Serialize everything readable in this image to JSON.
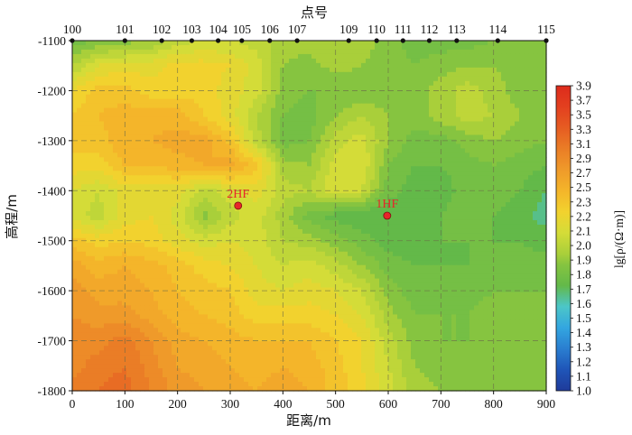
{
  "chart_data": {
    "type": "heatmap",
    "top_axis_title": "点号",
    "station_labels": [
      "100",
      "101",
      "102",
      "103",
      "104",
      "105",
      "106",
      "107",
      "109",
      "110",
      "111",
      "112",
      "113",
      "114",
      "115"
    ],
    "station_x": [
      0,
      100,
      170,
      227,
      277,
      322,
      375,
      427,
      525,
      578,
      628,
      678,
      730,
      808,
      900
    ],
    "xlabel": "距离/m",
    "ylabel": "高程/m",
    "xlim": [
      0,
      900
    ],
    "ylim": [
      -1800,
      -1100
    ],
    "x_ticks": [
      "0",
      "100",
      "200",
      "300",
      "400",
      "500",
      "600",
      "700",
      "800",
      "900"
    ],
    "y_ticks": [
      "-1100",
      "-1200",
      "-1300",
      "-1400",
      "-1500",
      "-1600",
      "-1700",
      "-1800"
    ],
    "grid": true,
    "colorbar": {
      "label": "lg[ρ/(Ω·m)]",
      "range": [
        1.0,
        3.9
      ],
      "ticks": [
        "1.0",
        "1.1",
        "1.2",
        "1.3",
        "1.4",
        "1.5",
        "1.6",
        "1.7",
        "1.8",
        "1.9",
        "2.0",
        "2.1",
        "2.2",
        "2.3",
        "2.5",
        "2.7",
        "2.9",
        "3.1",
        "3.3",
        "3.5",
        "3.7",
        "3.9"
      ],
      "tick_values": [
        1.0,
        1.1,
        1.2,
        1.3,
        1.4,
        1.5,
        1.6,
        1.7,
        1.8,
        1.9,
        2.0,
        2.1,
        2.2,
        2.3,
        2.5,
        2.7,
        2.9,
        3.1,
        3.3,
        3.5,
        3.7,
        3.9
      ],
      "stops": [
        [
          1.0,
          "#1f3b9a"
        ],
        [
          1.2,
          "#1f55b8"
        ],
        [
          1.4,
          "#2a7ed0"
        ],
        [
          1.6,
          "#33a6e0"
        ],
        [
          1.8,
          "#4cc6c8"
        ],
        [
          1.9,
          "#57bf8a"
        ],
        [
          2.0,
          "#63b949"
        ],
        [
          2.2,
          "#86c440"
        ],
        [
          2.3,
          "#a9cf3a"
        ],
        [
          2.5,
          "#d4dc38"
        ],
        [
          2.7,
          "#f2d22e"
        ],
        [
          2.9,
          "#f4b52a"
        ],
        [
          3.1,
          "#ef9a2a"
        ],
        [
          3.3,
          "#ea7d26"
        ],
        [
          3.5,
          "#e65c22"
        ],
        [
          3.7,
          "#e3401f"
        ],
        [
          3.9,
          "#dd2b1c"
        ]
      ]
    },
    "wells": [
      {
        "name": "2HF",
        "x": 315,
        "y": -1430,
        "color": "#e8262a"
      },
      {
        "name": "1HF",
        "x": 598,
        "y": -1450,
        "color": "#e8262a"
      }
    ],
    "grid_x": [
      0,
      50,
      100,
      150,
      200,
      250,
      300,
      350,
      400,
      450,
      500,
      550,
      600,
      650,
      700,
      750,
      800,
      850,
      900
    ],
    "grid_y": [
      -1100,
      -1150,
      -1200,
      -1250,
      -1300,
      -1350,
      -1400,
      -1450,
      -1500,
      -1550,
      -1600,
      -1650,
      -1700,
      -1750,
      -1800
    ],
    "values": [
      [
        2.1,
        2.15,
        2.2,
        2.25,
        2.4,
        2.45,
        2.45,
        2.4,
        2.3,
        2.3,
        2.35,
        2.3,
        2.2,
        2.1,
        2.1,
        2.1,
        2.15,
        2.2,
        2.2
      ],
      [
        2.35,
        2.55,
        2.6,
        2.6,
        2.7,
        2.7,
        2.65,
        2.5,
        2.25,
        2.2,
        2.3,
        2.25,
        2.2,
        2.15,
        2.2,
        2.25,
        2.25,
        2.2,
        2.2
      ],
      [
        2.65,
        2.8,
        2.8,
        2.7,
        2.7,
        2.7,
        2.6,
        2.5,
        2.2,
        2.15,
        2.15,
        2.15,
        2.2,
        2.2,
        2.3,
        2.4,
        2.3,
        2.2,
        2.2
      ],
      [
        2.75,
        2.85,
        2.9,
        2.9,
        2.9,
        2.75,
        2.6,
        2.35,
        2.15,
        2.1,
        2.25,
        2.35,
        2.25,
        2.2,
        2.3,
        2.4,
        2.35,
        2.25,
        2.2
      ],
      [
        2.8,
        2.8,
        2.95,
        2.95,
        3.0,
        3.0,
        2.8,
        2.4,
        2.1,
        2.15,
        2.4,
        2.5,
        2.25,
        2.1,
        2.1,
        2.2,
        2.25,
        2.2,
        2.15
      ],
      [
        2.7,
        2.7,
        2.85,
        2.85,
        2.9,
        2.95,
        3.0,
        2.8,
        2.3,
        2.25,
        2.5,
        2.55,
        2.15,
        2.05,
        2.05,
        2.1,
        2.15,
        2.1,
        2.05
      ],
      [
        2.55,
        2.45,
        2.6,
        2.6,
        2.6,
        2.4,
        2.5,
        2.6,
        2.4,
        2.35,
        2.55,
        2.45,
        2.1,
        2.0,
        2.0,
        2.1,
        2.1,
        2.05,
        1.95
      ],
      [
        2.5,
        2.4,
        2.6,
        2.65,
        2.5,
        2.2,
        2.4,
        2.5,
        2.3,
        2.1,
        2.0,
        1.95,
        1.95,
        2.0,
        2.05,
        2.1,
        2.05,
        2.0,
        1.9
      ],
      [
        2.8,
        2.7,
        2.75,
        2.7,
        2.6,
        2.5,
        2.55,
        2.5,
        2.35,
        2.3,
        2.2,
        2.1,
        2.0,
        2.0,
        2.05,
        2.05,
        2.05,
        2.05,
        2.0
      ],
      [
        3.0,
        2.9,
        2.95,
        2.9,
        2.8,
        2.7,
        2.65,
        2.55,
        2.45,
        2.5,
        2.4,
        2.25,
        2.1,
        2.05,
        2.05,
        2.05,
        2.1,
        2.1,
        2.1
      ],
      [
        3.1,
        3.0,
        3.0,
        2.95,
        2.85,
        2.8,
        2.75,
        2.6,
        2.55,
        2.6,
        2.55,
        2.45,
        2.2,
        2.1,
        2.1,
        2.1,
        2.15,
        2.15,
        2.15
      ],
      [
        3.15,
        3.1,
        3.1,
        3.0,
        2.9,
        2.85,
        2.8,
        2.7,
        2.7,
        2.7,
        2.65,
        2.55,
        2.3,
        2.15,
        2.15,
        2.15,
        2.2,
        2.2,
        2.2
      ],
      [
        3.2,
        3.2,
        3.3,
        3.15,
        3.0,
        2.95,
        2.9,
        2.85,
        2.85,
        2.85,
        2.75,
        2.65,
        2.4,
        2.2,
        2.15,
        2.15,
        2.2,
        2.2,
        2.2
      ],
      [
        3.2,
        3.3,
        3.35,
        3.2,
        3.05,
        3.0,
        2.95,
        2.9,
        2.95,
        2.9,
        2.8,
        2.65,
        2.45,
        2.25,
        2.2,
        2.2,
        2.2,
        2.2,
        2.2
      ],
      [
        3.3,
        3.35,
        3.4,
        3.25,
        3.1,
        3.05,
        3.0,
        2.95,
        3.0,
        2.95,
        2.8,
        2.7,
        2.5,
        2.3,
        2.25,
        2.25,
        2.2,
        2.2,
        2.2
      ]
    ]
  }
}
